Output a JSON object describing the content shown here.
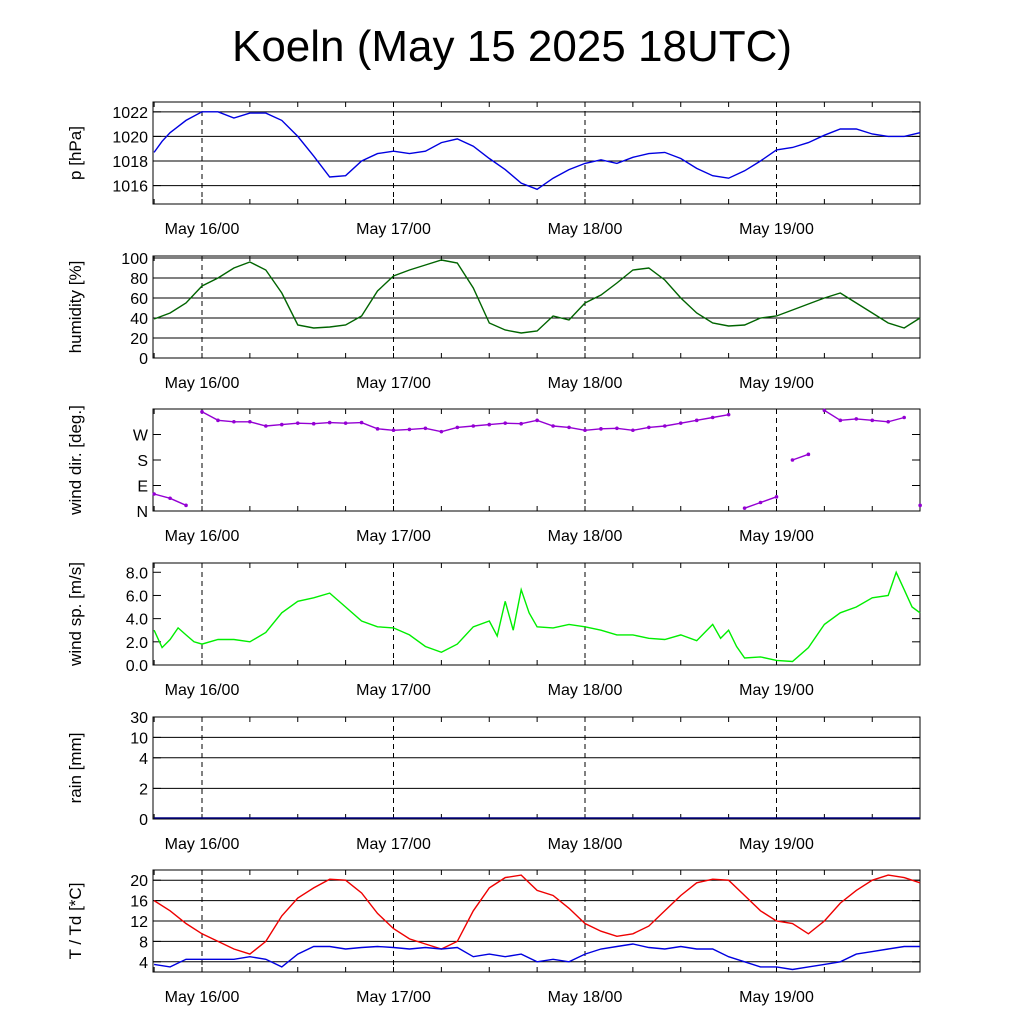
{
  "title": "Koeln (May 15 2025 18UTC)",
  "x_tick_labels": [
    "May 16/00",
    "May 17/00",
    "May 18/00",
    "May 19/00"
  ],
  "chart_data": [
    {
      "type": "line",
      "name": "pressure",
      "ylabel": "p [hPa]",
      "ylim": [
        1014.5,
        1022.8
      ],
      "yticks": [
        1016,
        1018,
        1020,
        1022
      ],
      "ytick_labels": [
        "1016",
        "1018",
        "1020",
        "1022"
      ],
      "grid": true,
      "color": "#0000e0",
      "x_hours": [
        0,
        1,
        2,
        4,
        6,
        8,
        10,
        12,
        14,
        16,
        18,
        20,
        22,
        24,
        26,
        28,
        30,
        32,
        34,
        36,
        38,
        40,
        42,
        44,
        46,
        48,
        50,
        52,
        54,
        56,
        58,
        60,
        62,
        64,
        66,
        68,
        70,
        72,
        74,
        76,
        78,
        80,
        82,
        84,
        86,
        88,
        90,
        92,
        94,
        96
      ],
      "values": [
        1018.7,
        1019.6,
        1020.3,
        1021.3,
        1022.0,
        1022.0,
        1021.5,
        1021.9,
        1021.9,
        1021.3,
        1020.0,
        1018.4,
        1016.7,
        1016.8,
        1018.0,
        1018.6,
        1018.8,
        1018.6,
        1018.8,
        1019.5,
        1019.8,
        1019.2,
        1018.2,
        1017.3,
        1016.2,
        1015.7,
        1016.6,
        1017.3,
        1017.8,
        1018.1,
        1017.8,
        1018.3,
        1018.6,
        1018.7,
        1018.2,
        1017.4,
        1016.8,
        1016.6,
        1017.2,
        1018.0,
        1018.9,
        1019.1,
        1019.5,
        1020.1,
        1020.6,
        1020.6,
        1020.2,
        1020.0,
        1020.0,
        1020.3
      ]
    },
    {
      "type": "line",
      "name": "humidity",
      "ylabel": "humidity [%]",
      "ylim": [
        0,
        102
      ],
      "yticks": [
        0,
        20,
        40,
        60,
        80,
        100
      ],
      "ytick_labels": [
        "0",
        "20",
        "40",
        "60",
        "80",
        "100"
      ],
      "grid": true,
      "color": "#006400",
      "x_hours": [
        0,
        2,
        4,
        6,
        8,
        10,
        12,
        14,
        16,
        18,
        20,
        22,
        24,
        26,
        28,
        30,
        32,
        34,
        36,
        38,
        40,
        42,
        44,
        46,
        48,
        50,
        52,
        54,
        56,
        58,
        60,
        62,
        64,
        66,
        68,
        70,
        72,
        74,
        76,
        78,
        80,
        82,
        84,
        86,
        88,
        90,
        92,
        94,
        96
      ],
      "values": [
        39,
        45,
        55,
        72,
        80,
        90,
        96,
        88,
        65,
        33,
        30,
        31,
        33,
        42,
        67,
        82,
        88,
        93,
        98,
        95,
        70,
        35,
        28,
        25,
        27,
        42,
        38,
        55,
        63,
        75,
        88,
        90,
        78,
        60,
        45,
        35,
        32,
        33,
        40,
        42,
        48,
        54,
        60,
        65,
        55,
        45,
        35,
        30,
        40
      ]
    },
    {
      "type": "scatter",
      "name": "wind direction",
      "ylabel": "wind dir. [deg.]",
      "ylim": [
        0,
        360
      ],
      "yticks": [
        0,
        90,
        180,
        270
      ],
      "ytick_labels": [
        "N",
        "E",
        "S",
        "W"
      ],
      "grid": false,
      "color": "#9400d3",
      "x_hours": [
        0,
        2,
        4,
        6,
        8,
        10,
        12,
        14,
        16,
        18,
        20,
        22,
        24,
        26,
        28,
        30,
        32,
        34,
        36,
        38,
        40,
        42,
        44,
        46,
        48,
        50,
        52,
        54,
        56,
        58,
        60,
        62,
        64,
        66,
        68,
        70,
        72,
        74,
        76,
        78,
        80,
        82,
        84,
        86,
        88,
        90,
        92,
        94,
        96
      ],
      "values": [
        60,
        45,
        20,
        350,
        320,
        315,
        315,
        300,
        305,
        310,
        308,
        312,
        310,
        312,
        290,
        285,
        288,
        292,
        280,
        295,
        300,
        305,
        310,
        308,
        320,
        300,
        295,
        285,
        290,
        292,
        285,
        295,
        300,
        310,
        320,
        330,
        340,
        10,
        30,
        50,
        180,
        200,
        355,
        320,
        325,
        320,
        315,
        330,
        20
      ]
    },
    {
      "type": "line",
      "name": "wind speed",
      "ylabel": "wind sp. [m/s]",
      "ylim": [
        0,
        8.8
      ],
      "yticks": [
        0,
        2,
        4,
        6,
        8
      ],
      "ytick_labels": [
        "0.0",
        "2.0",
        "4.0",
        "6.0",
        "8.0"
      ],
      "grid": false,
      "color": "#00ee00",
      "x_hours": [
        0,
        1,
        2,
        3,
        4,
        5,
        6,
        8,
        10,
        12,
        14,
        16,
        18,
        20,
        22,
        24,
        26,
        28,
        30,
        32,
        34,
        36,
        38,
        40,
        42,
        43,
        44,
        45,
        46,
        47,
        48,
        50,
        52,
        54,
        56,
        58,
        60,
        62,
        64,
        66,
        68,
        70,
        71,
        72,
        73,
        74,
        76,
        78,
        80,
        82,
        84,
        86,
        88,
        90,
        92,
        93,
        94,
        95,
        96
      ],
      "values": [
        3.0,
        1.5,
        2.2,
        3.2,
        2.6,
        2.0,
        1.8,
        2.2,
        2.2,
        2.0,
        2.8,
        4.5,
        5.5,
        5.8,
        6.2,
        5.0,
        3.8,
        3.3,
        3.2,
        2.6,
        1.6,
        1.1,
        1.8,
        3.3,
        3.8,
        2.5,
        5.5,
        3.0,
        6.5,
        4.5,
        3.3,
        3.2,
        3.5,
        3.3,
        3.0,
        2.6,
        2.6,
        2.3,
        2.2,
        2.6,
        2.1,
        3.5,
        2.3,
        3.0,
        1.6,
        0.6,
        0.7,
        0.4,
        0.3,
        1.5,
        3.5,
        4.5,
        5.0,
        5.8,
        6.0,
        8.0,
        6.5,
        5.0,
        4.5
      ]
    },
    {
      "type": "line",
      "name": "rain",
      "ylabel": "rain [mm]",
      "ylim": [
        0,
        30
      ],
      "yticks": [
        0,
        2,
        4,
        10,
        30
      ],
      "ytick_labels": [
        "0",
        "2",
        "4",
        "10",
        "30"
      ],
      "grid": true,
      "color": "#000080",
      "x_hours": [
        0,
        96
      ],
      "values": [
        0,
        0
      ]
    },
    {
      "type": "line",
      "name": "temperature",
      "ylabel": "T / Td [*C]",
      "ylim": [
        2,
        22
      ],
      "yticks": [
        4,
        8,
        12,
        16,
        20
      ],
      "ytick_labels": [
        "4",
        "8",
        "12",
        "16",
        "20"
      ],
      "grid": true,
      "series": [
        {
          "color": "#ee0000",
          "x_hours": [
            0,
            2,
            4,
            6,
            8,
            10,
            12,
            14,
            16,
            18,
            20,
            22,
            24,
            26,
            28,
            30,
            32,
            34,
            36,
            38,
            40,
            42,
            44,
            46,
            48,
            50,
            52,
            54,
            56,
            58,
            60,
            62,
            64,
            66,
            68,
            70,
            72,
            74,
            76,
            78,
            80,
            82,
            84,
            86,
            88,
            90,
            92,
            94,
            96
          ],
          "values": [
            16.0,
            14.0,
            11.5,
            9.5,
            8.0,
            6.5,
            5.5,
            8.0,
            13.0,
            16.5,
            18.5,
            20.2,
            20.0,
            17.5,
            13.5,
            10.5,
            8.5,
            7.5,
            6.5,
            8.0,
            14.0,
            18.5,
            20.5,
            21.0,
            18.0,
            17.0,
            14.5,
            11.5,
            10.0,
            9.0,
            9.5,
            11.0,
            14.0,
            17.0,
            19.5,
            20.2,
            20.0,
            17.0,
            14.0,
            12.0,
            11.5,
            9.5,
            12.0,
            15.5,
            18.0,
            20.0,
            21.0,
            20.5,
            19.5
          ]
        },
        {
          "color": "#0000e0",
          "x_hours": [
            0,
            2,
            4,
            6,
            8,
            10,
            12,
            14,
            16,
            18,
            20,
            22,
            24,
            26,
            28,
            30,
            32,
            34,
            36,
            38,
            40,
            42,
            44,
            46,
            48,
            50,
            52,
            54,
            56,
            58,
            60,
            62,
            64,
            66,
            68,
            70,
            72,
            74,
            76,
            78,
            80,
            82,
            84,
            86,
            88,
            90,
            92,
            94,
            96
          ],
          "values": [
            3.5,
            3.0,
            4.5,
            4.5,
            4.5,
            4.5,
            5.0,
            4.5,
            3.0,
            5.5,
            7.0,
            7.0,
            6.5,
            6.8,
            7.0,
            6.8,
            6.5,
            6.8,
            6.5,
            6.8,
            5.0,
            5.5,
            5.0,
            5.5,
            4.0,
            4.5,
            4.0,
            5.5,
            6.5,
            7.0,
            7.5,
            6.8,
            6.5,
            7.0,
            6.5,
            6.5,
            5.0,
            4.0,
            3.0,
            3.0,
            2.5,
            3.0,
            3.5,
            4.0,
            5.5,
            6.0,
            6.5,
            7.0,
            7.0
          ]
        }
      ]
    }
  ]
}
